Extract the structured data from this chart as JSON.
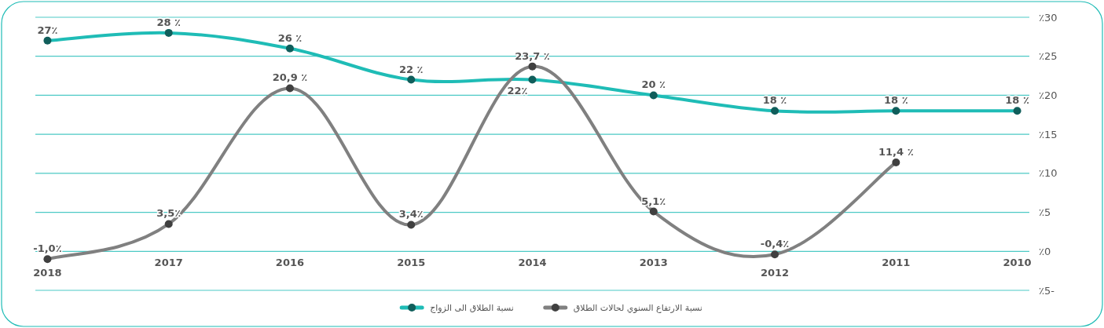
{
  "chart_data": {
    "type": "line",
    "categories": [
      "2018",
      "2017",
      "2016",
      "2015",
      "2014",
      "2013",
      "2012",
      "2011",
      "2010"
    ],
    "series": [
      {
        "name": "نسبة الطلاق الى الزواج",
        "color": "#1fbcb6",
        "values": [
          27,
          28,
          26,
          22,
          22,
          20,
          18,
          18,
          18
        ],
        "value_labels": [
          "27٪",
          "28 ٪",
          "26 ٪",
          "22 ٪",
          "22٪",
          "20 ٪",
          "18 ٪",
          "18 ٪",
          "18 ٪"
        ]
      },
      {
        "name": "نسبة الارتفاع السنوي لحالات الطلاق",
        "color": "#808080",
        "values": [
          -1.0,
          3.5,
          20.9,
          3.4,
          23.7,
          5.1,
          -0.4,
          11.4,
          null
        ],
        "value_labels": [
          "-1,0٪",
          "3,5٪",
          "20,9 ٪",
          "3,4٪",
          "23,7 ٪",
          "5,1٪",
          "-0,4٪",
          "11,4 ٪",
          null
        ]
      }
    ],
    "ylim": [
      -5,
      30
    ],
    "yticks": [
      {
        "value": -5,
        "label": "٪5-"
      },
      {
        "value": 0,
        "label": "٪0"
      },
      {
        "value": 5,
        "label": "٪5"
      },
      {
        "value": 10,
        "label": "٪10"
      },
      {
        "value": 15,
        "label": "٪15"
      },
      {
        "value": 20,
        "label": "٪20"
      },
      {
        "value": 25,
        "label": "٪25"
      },
      {
        "value": 30,
        "label": "٪30"
      }
    ],
    "grid": "y",
    "legend": "bottom",
    "marker": "circle"
  }
}
